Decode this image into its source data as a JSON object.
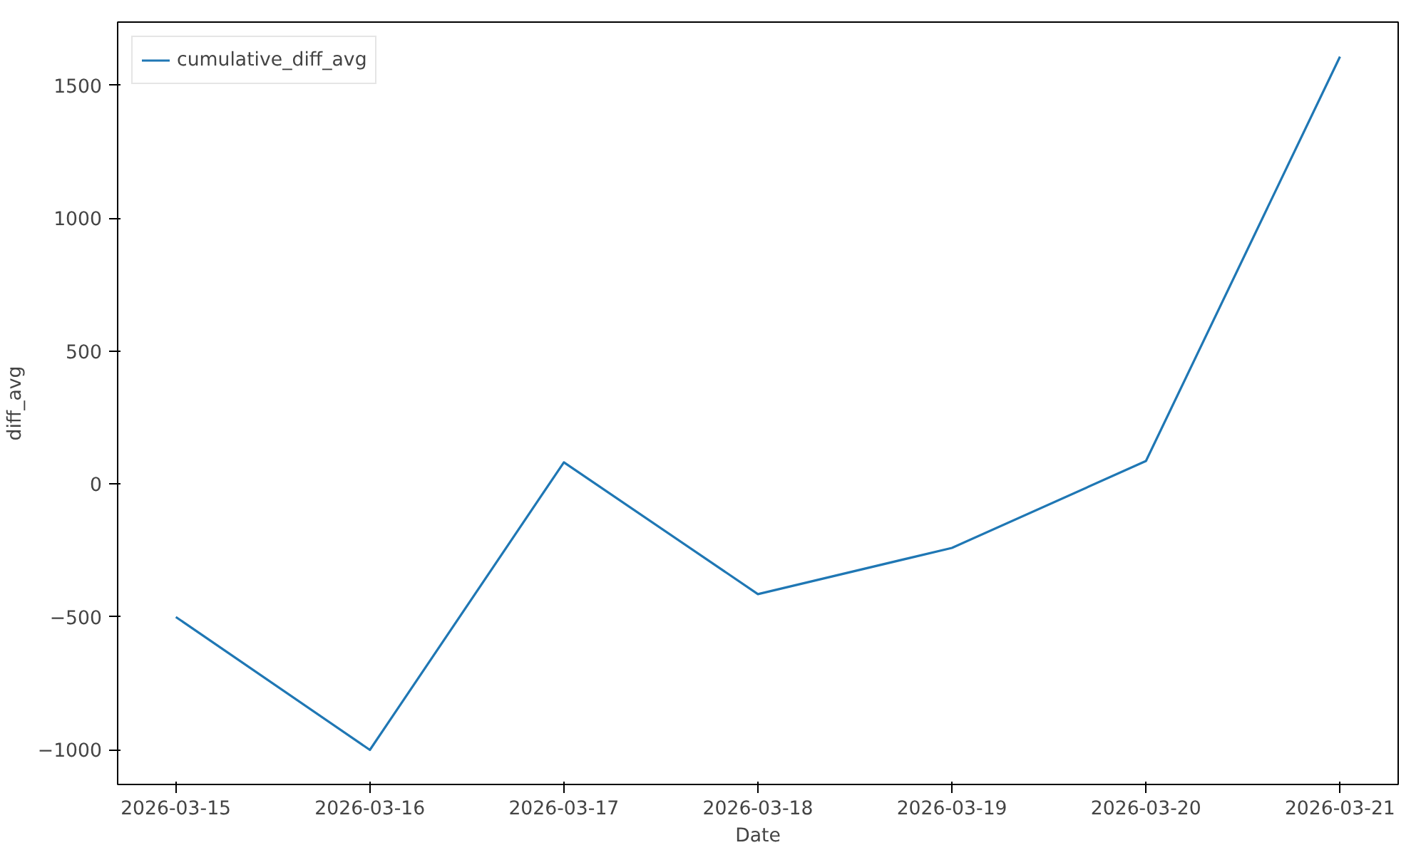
{
  "chart_data": {
    "type": "line",
    "xlabel": "Date",
    "ylabel": "diff_avg",
    "x": [
      "2026-03-15",
      "2026-03-16",
      "2026-03-17",
      "2026-03-18",
      "2026-03-19",
      "2026-03-20",
      "2026-03-21"
    ],
    "series": [
      {
        "name": "cumulative_diff_avg",
        "color": "#1f77b4",
        "values": [
          -500,
          -1000,
          82,
          -414,
          -240,
          87,
          1608
        ]
      }
    ],
    "xlim": [
      "2026-03-14T16:48",
      "2026-03-21T07:12"
    ],
    "ylim": [
      -1130,
      1738
    ],
    "xticks": [
      "2026-03-15",
      "2026-03-16",
      "2026-03-17",
      "2026-03-18",
      "2026-03-19",
      "2026-03-20",
      "2026-03-21"
    ],
    "yticks": [
      -1000,
      -500,
      0,
      500,
      1000,
      1500
    ],
    "grid": false,
    "legend": "top left",
    "line_style": "solid",
    "marker": "none"
  }
}
